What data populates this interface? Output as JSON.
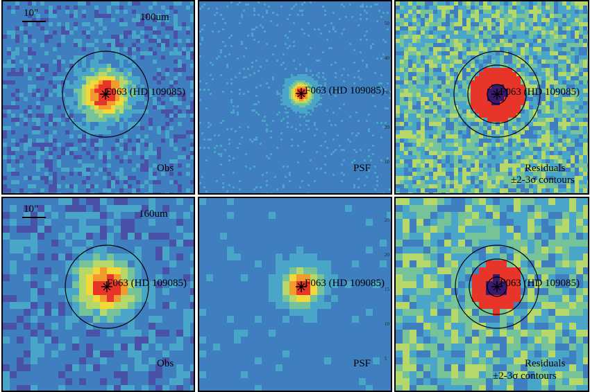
{
  "figure": {
    "source_label": "F063 (HD 109085)",
    "scale_bar": "10\"",
    "rows": [
      {
        "band": "100um",
        "panels": [
          {
            "kind": "obs",
            "corner_label": "Obs"
          },
          {
            "kind": "psf",
            "corner_label": "PSF"
          },
          {
            "kind": "res",
            "corner_label": "Residuals",
            "corner_label2": "±2-3σ contours"
          }
        ],
        "psf_axis_ticks": [
          "50",
          "40",
          "30",
          "20",
          "10"
        ]
      },
      {
        "band": "160um",
        "panels": [
          {
            "kind": "obs",
            "corner_label": "Obs"
          },
          {
            "kind": "psf",
            "corner_label": "PSF"
          },
          {
            "kind": "res",
            "corner_label": "Residuals",
            "corner_label2": "±2-3σ contours"
          }
        ],
        "psf_axis_ticks": [
          "25",
          "20",
          "15",
          "10",
          "5"
        ]
      }
    ],
    "colormap": [
      "#3b1a6e",
      "#4a52a8",
      "#3f7fc0",
      "#4aa6c8",
      "#76c39a",
      "#b6d86a",
      "#f2d83a",
      "#f39a2c",
      "#e8352a"
    ]
  }
}
